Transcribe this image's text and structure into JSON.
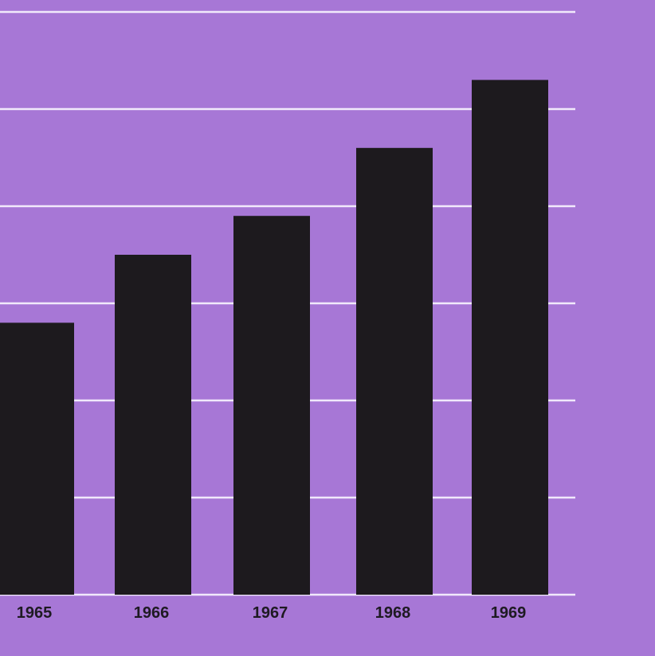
{
  "chart_data": {
    "type": "bar",
    "categories": [
      "1965",
      "1966",
      "1967",
      "1968",
      "1969"
    ],
    "values": [
      2.8,
      3.5,
      3.9,
      4.6,
      5.3
    ],
    "title": "",
    "xlabel": "",
    "ylabel": "",
    "ylim": [
      0,
      6
    ],
    "grid": true,
    "colors": {
      "background": "#a777d6",
      "bar": "#1d1a1e",
      "gridline": "#f1e9fb",
      "label": "#1e1a22"
    }
  }
}
